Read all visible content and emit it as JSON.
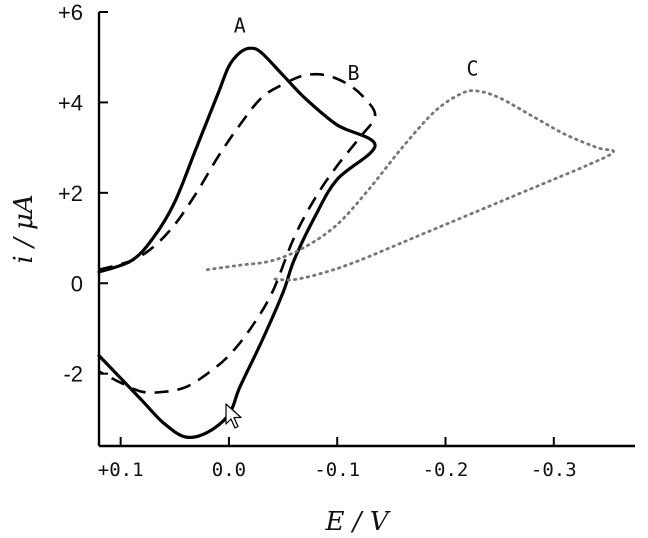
{
  "chart_data": {
    "type": "line",
    "xlabel": "E / V",
    "ylabel": "i / μA",
    "xlim": [
      0.12,
      -0.375
    ],
    "ylim": [
      -3.6,
      6.0
    ],
    "x_axis_reversed": true,
    "xticks": [
      0.1,
      0.0,
      -0.1,
      -0.2,
      -0.3
    ],
    "xtick_labels": [
      "+0.1",
      "0.0",
      "-0.1",
      "-0.2",
      "-0.3"
    ],
    "yticks": [
      6,
      4,
      2,
      0,
      -2
    ],
    "ytick_labels": [
      "+6",
      "+4",
      "+2",
      "0",
      "-2"
    ],
    "grid": false,
    "series": [
      {
        "name": "A",
        "style": "solid",
        "color": "#000000",
        "points": [
          [
            0.12,
            0.25
          ],
          [
            0.09,
            0.5
          ],
          [
            0.07,
            1.0
          ],
          [
            0.05,
            1.8
          ],
          [
            0.03,
            3.0
          ],
          [
            0.01,
            4.2
          ],
          [
            0.0,
            4.8
          ],
          [
            -0.01,
            5.1
          ],
          [
            -0.02,
            5.2
          ],
          [
            -0.03,
            5.1
          ],
          [
            -0.05,
            4.6
          ],
          [
            -0.07,
            4.1
          ],
          [
            -0.1,
            3.5
          ],
          [
            -0.135,
            3.05
          ],
          [
            -0.1,
            2.3
          ],
          [
            -0.08,
            1.5
          ],
          [
            -0.06,
            0.5
          ],
          [
            -0.05,
            -0.2
          ],
          [
            -0.03,
            -1.3
          ],
          [
            -0.01,
            -2.3
          ],
          [
            0.0,
            -2.9
          ],
          [
            0.02,
            -3.3
          ],
          [
            0.04,
            -3.4
          ],
          [
            0.06,
            -3.1
          ],
          [
            0.08,
            -2.6
          ],
          [
            0.1,
            -2.1
          ],
          [
            0.12,
            -1.6
          ]
        ]
      },
      {
        "name": "B",
        "style": "dashed",
        "color": "#000000",
        "points": [
          [
            0.12,
            0.3
          ],
          [
            0.09,
            0.5
          ],
          [
            0.07,
            0.8
          ],
          [
            0.05,
            1.3
          ],
          [
            0.03,
            2.0
          ],
          [
            0.01,
            2.8
          ],
          [
            -0.01,
            3.5
          ],
          [
            -0.03,
            4.1
          ],
          [
            -0.05,
            4.4
          ],
          [
            -0.07,
            4.6
          ],
          [
            -0.09,
            4.6
          ],
          [
            -0.11,
            4.4
          ],
          [
            -0.125,
            4.1
          ],
          [
            -0.135,
            3.7
          ],
          [
            -0.12,
            3.2
          ],
          [
            -0.1,
            2.6
          ],
          [
            -0.08,
            1.9
          ],
          [
            -0.06,
            1.0
          ],
          [
            -0.04,
            -0.2
          ],
          [
            -0.02,
            -1.0
          ],
          [
            0.0,
            -1.6
          ],
          [
            0.02,
            -2.0
          ],
          [
            0.04,
            -2.3
          ],
          [
            0.06,
            -2.4
          ],
          [
            0.08,
            -2.4
          ],
          [
            0.1,
            -2.2
          ],
          [
            0.12,
            -1.95
          ]
        ]
      },
      {
        "name": "C",
        "style": "dotted",
        "color": "#777777",
        "points": [
          [
            0.02,
            0.3
          ],
          [
            -0.01,
            0.4
          ],
          [
            -0.04,
            0.5
          ],
          [
            -0.07,
            0.8
          ],
          [
            -0.1,
            1.3
          ],
          [
            -0.13,
            2.1
          ],
          [
            -0.16,
            3.0
          ],
          [
            -0.19,
            3.8
          ],
          [
            -0.215,
            4.2
          ],
          [
            -0.23,
            4.25
          ],
          [
            -0.25,
            4.1
          ],
          [
            -0.28,
            3.7
          ],
          [
            -0.31,
            3.3
          ],
          [
            -0.34,
            3.0
          ],
          [
            -0.355,
            2.9
          ],
          [
            -0.33,
            2.6
          ],
          [
            -0.3,
            2.3
          ],
          [
            -0.27,
            2.0
          ],
          [
            -0.24,
            1.7
          ],
          [
            -0.2,
            1.3
          ],
          [
            -0.16,
            0.9
          ],
          [
            -0.12,
            0.5
          ],
          [
            -0.09,
            0.25
          ],
          [
            -0.06,
            0.08
          ],
          [
            -0.04,
            0.1
          ]
        ]
      }
    ],
    "annotations": [
      {
        "text": "A",
        "x": -0.01,
        "y": 5.55
      },
      {
        "text": "B",
        "x": -0.115,
        "y": 4.5
      },
      {
        "text": "C",
        "x": -0.225,
        "y": 4.6
      }
    ]
  }
}
